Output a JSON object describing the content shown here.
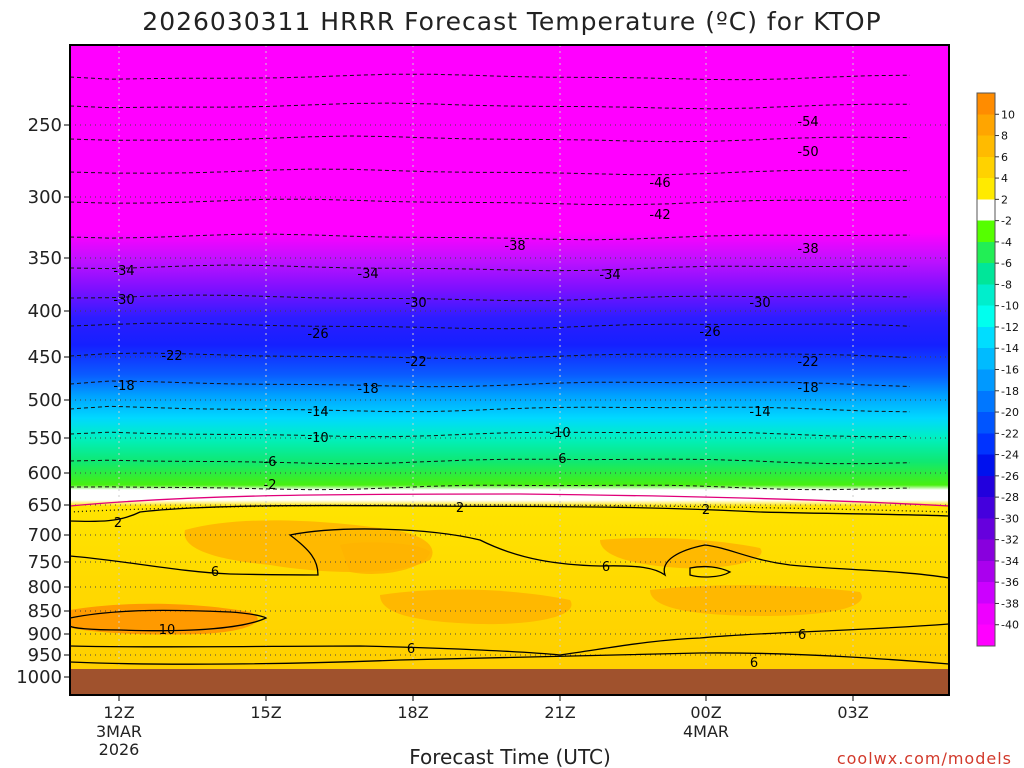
{
  "title": "2026030311 HRRR Forecast Temperature (ºC) for KTOP",
  "credit": "coolwx.com/models",
  "chart_data": {
    "type": "heatmap",
    "title": "2026030311 HRRR Forecast Temperature (ºC) for KTOP",
    "xlabel": "Forecast Time (UTC)",
    "ylabel": "",
    "y_axis": {
      "scale": "log",
      "inverted": true,
      "range_hpa": [
        1000,
        200
      ],
      "ticks": [
        250,
        300,
        350,
        400,
        450,
        500,
        550,
        600,
        650,
        700,
        750,
        800,
        850,
        900,
        950,
        1000
      ]
    },
    "x_axis": {
      "range_hours_utc": [
        "2026-03-03T11Z",
        "2026-03-04T05Z"
      ],
      "ticks": [
        {
          "label": "12Z",
          "sub": [
            "3MAR",
            "2026"
          ],
          "time": "2026-03-03T12Z"
        },
        {
          "label": "15Z",
          "sub": [],
          "time": "2026-03-03T15Z"
        },
        {
          "label": "18Z",
          "sub": [],
          "time": "2026-03-03T18Z"
        },
        {
          "label": "21Z",
          "sub": [],
          "time": "2026-03-03T21Z"
        },
        {
          "label": "00Z",
          "sub": [
            "4MAR"
          ],
          "time": "2026-03-04T00Z"
        },
        {
          "label": "03Z",
          "sub": [],
          "time": "2026-03-04T03Z"
        }
      ]
    },
    "colorbar": {
      "labels": [
        "10",
        "8",
        "6",
        "4",
        "2",
        "-2",
        "-4",
        "-6",
        "-8",
        "-10",
        "-12",
        "-14",
        "-16",
        "-18",
        "-20",
        "-22",
        "-24",
        "-26",
        "-28",
        "-30",
        "-32",
        "-34",
        "-36",
        "-38",
        "-40"
      ],
      "colors": [
        "#ff8c00",
        "#ffa500",
        "#ffbb00",
        "#ffd200",
        "#ffea00",
        "#ffffff",
        "#55ff00",
        "#22ee55",
        "#00e699",
        "#00eecc",
        "#00ffee",
        "#00ddff",
        "#00bbff",
        "#0099ff",
        "#0077ff",
        "#0055ff",
        "#0033ff",
        "#0011ee",
        "#2200dd",
        "#4400dd",
        "#6600dd",
        "#8800dd",
        "#aa00ee",
        "#cc00ff",
        "#ee00ff",
        "#ff00ff"
      ]
    },
    "contours": {
      "dashed_levels": [
        -54,
        -50,
        -46,
        -42,
        -38,
        -34,
        -30,
        -26,
        -22,
        -18,
        -14,
        -10,
        -6,
        -2
      ],
      "solid_levels": [
        2,
        6,
        10
      ],
      "freezing_line_hpa": [
        645,
        642,
        640,
        640,
        641,
        645,
        650
      ]
    },
    "contour_labels": [
      {
        "text": "-54",
        "time_h": 21.5,
        "p": 245
      },
      {
        "text": "-50",
        "time_h": 21.5,
        "p": 265
      },
      {
        "text": "-46",
        "time_h": 13.5,
        "p": 290
      },
      {
        "text": "-42",
        "time_h": 13.5,
        "p": 313
      },
      {
        "text": "-38",
        "time_h": 8.5,
        "p": 343
      },
      {
        "text": "-38",
        "time_h": 21.5,
        "p": 346
      },
      {
        "text": "-34",
        "time_h": 0.1,
        "p": 367
      },
      {
        "text": "-34",
        "time_h": 6.0,
        "p": 368
      },
      {
        "text": "-34",
        "time_h": 11.0,
        "p": 370
      },
      {
        "text": "-30",
        "time_h": 0.1,
        "p": 390
      },
      {
        "text": "-30",
        "time_h": 7.0,
        "p": 392
      },
      {
        "text": "-30",
        "time_h": 18.0,
        "p": 392
      },
      {
        "text": "-26",
        "time_h": 4.0,
        "p": 423
      },
      {
        "text": "-26",
        "time_h": 12.0,
        "p": 420
      },
      {
        "text": "-22",
        "time_h": 1.0,
        "p": 450
      },
      {
        "text": "-22",
        "time_h": 7.0,
        "p": 455
      },
      {
        "text": "-22",
        "time_h": 20.0,
        "p": 454
      },
      {
        "text": "-18",
        "time_h": 0.1,
        "p": 485
      },
      {
        "text": "-18",
        "time_h": 6.0,
        "p": 487
      },
      {
        "text": "-18",
        "time_h": 20.0,
        "p": 486
      },
      {
        "text": "-14",
        "time_h": 4.0,
        "p": 525
      },
      {
        "text": "-14",
        "time_h": 15.0,
        "p": 523
      },
      {
        "text": "-10",
        "time_h": 4.0,
        "p": 561
      },
      {
        "text": "-10",
        "time_h": 10.0,
        "p": 557
      },
      {
        "text": "-6",
        "time_h": 4.0,
        "p": 592
      },
      {
        "text": "-6",
        "time_h": 10.0,
        "p": 588
      },
      {
        "text": "-2",
        "time_h": 4.0,
        "p": 622
      },
      {
        "text": "2",
        "time_h": 10.0,
        "p": 662
      },
      {
        "text": "2",
        "time_h": 16.0,
        "p": 665
      },
      {
        "text": "2",
        "time_h": 0.0,
        "p": 688
      },
      {
        "text": "6",
        "time_h": 2.0,
        "p": 760
      },
      {
        "text": "6",
        "time_h": 14.0,
        "p": 755
      },
      {
        "text": "10",
        "time_h": 1.0,
        "p": 890
      },
      {
        "text": "6",
        "time_h": 7.0,
        "p": 935
      },
      {
        "text": "6",
        "time_h": 20.0,
        "p": 895
      },
      {
        "text": "6",
        "time_h": 18.0,
        "p": 960
      }
    ],
    "ground_hpa": 975
  }
}
